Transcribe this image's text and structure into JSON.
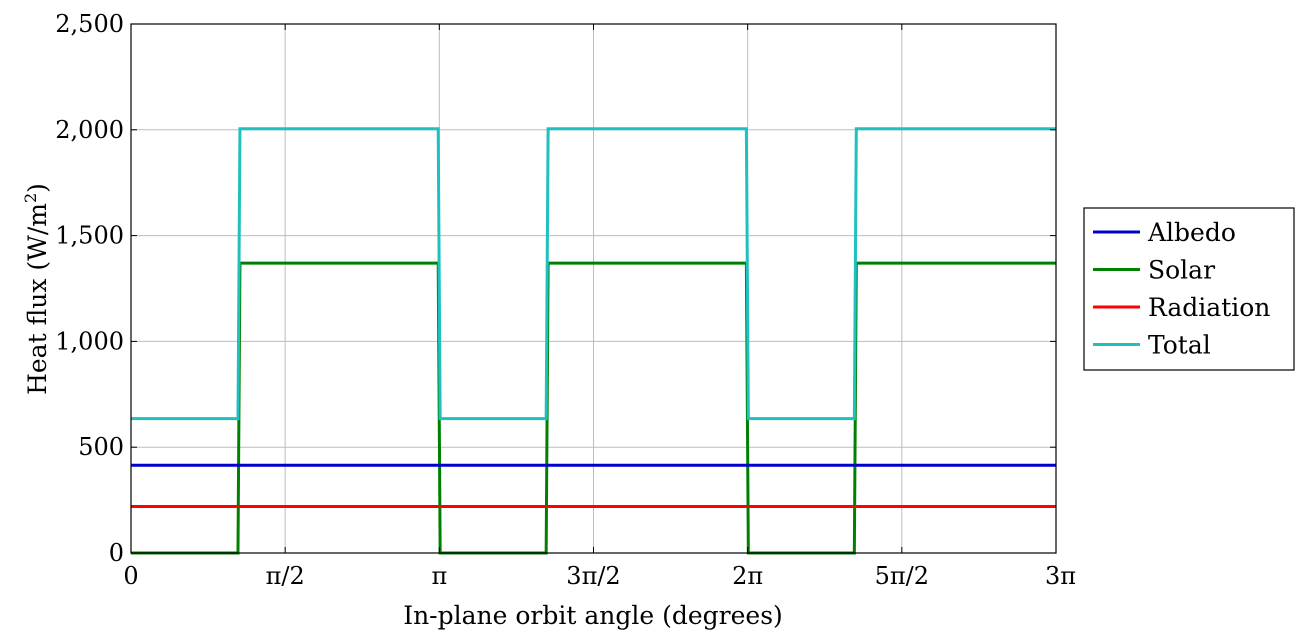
{
  "chart_data": {
    "type": "line",
    "xlabel": "In-plane orbit angle (degrees)",
    "ylabel_main": "Heat flux (W/m",
    "ylabel_sup": "2",
    "ylabel_close": ")",
    "xlim": [
      0,
      9.42478
    ],
    "ylim": [
      0,
      2500
    ],
    "grid": true,
    "legend_position": "right",
    "y_ticks": [
      {
        "value": 0,
        "label": "0"
      },
      {
        "value": 500,
        "label": "500"
      },
      {
        "value": 1000,
        "label": "1,000"
      },
      {
        "value": 1500,
        "label": "1,500"
      },
      {
        "value": 2000,
        "label": "2,000"
      },
      {
        "value": 2500,
        "label": "2,500"
      }
    ],
    "x_ticks": [
      {
        "value": 0,
        "label": "0"
      },
      {
        "value": 1.5708,
        "label": "π/2"
      },
      {
        "value": 3.14159,
        "label": "π"
      },
      {
        "value": 4.71239,
        "label": "3π/2"
      },
      {
        "value": 6.28319,
        "label": "2π"
      },
      {
        "value": 7.85398,
        "label": "5π/2"
      },
      {
        "value": 9.42478,
        "label": "3π"
      }
    ],
    "series": [
      {
        "name": "Albedo",
        "color": "#0000cc",
        "x": [
          0,
          9.42478
        ],
        "y": [
          415,
          415
        ]
      },
      {
        "name": "Solar",
        "color": "#008000",
        "x": [
          0,
          1.09,
          1.11,
          3.13,
          3.15,
          4.23,
          4.25,
          6.27,
          6.29,
          7.37,
          7.39,
          9.42478
        ],
        "y": [
          0,
          0,
          1370,
          1370,
          0,
          0,
          1370,
          1370,
          0,
          0,
          1370,
          1370
        ]
      },
      {
        "name": "Radiation",
        "color": "#ff0000",
        "x": [
          0,
          9.42478
        ],
        "y": [
          220,
          220
        ]
      },
      {
        "name": "Total",
        "color": "#1fc0c0",
        "x": [
          0,
          1.09,
          1.11,
          3.13,
          3.15,
          4.23,
          4.25,
          6.27,
          6.29,
          7.37,
          7.39,
          9.42478
        ],
        "y": [
          635,
          635,
          2005,
          2005,
          635,
          635,
          2005,
          2005,
          635,
          635,
          2005,
          2005
        ]
      }
    ]
  }
}
